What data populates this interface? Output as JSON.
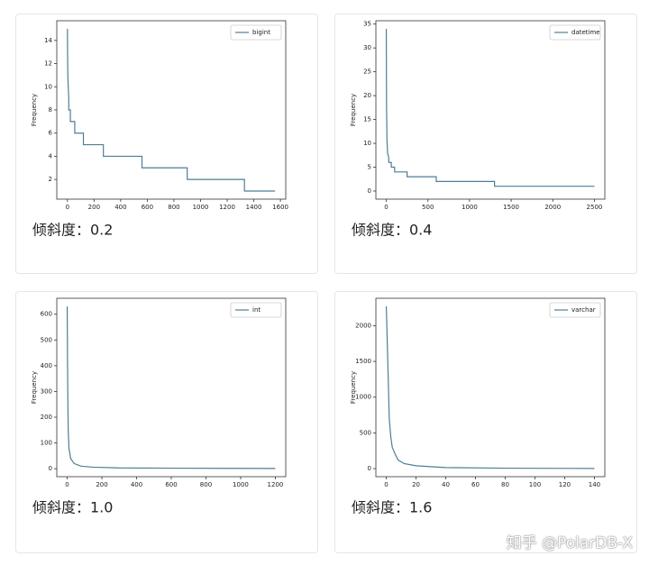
{
  "chart_data": [
    {
      "type": "line",
      "caption": "倾斜度：0.2",
      "ylabel": "Frequency",
      "legend": "upper right",
      "xlim": [
        -80,
        1640
      ],
      "xticks": [
        0,
        200,
        400,
        600,
        800,
        1000,
        1200,
        1400,
        1600
      ],
      "ylim": [
        0.3,
        15.7
      ],
      "yticks": [
        2,
        4,
        6,
        8,
        10,
        12,
        14
      ],
      "series": [
        {
          "name": "bigint",
          "color": "#4f7d95",
          "x": [
            0,
            1,
            3,
            6,
            10,
            10,
            22,
            22,
            55,
            55,
            120,
            120,
            270,
            270,
            560,
            560,
            900,
            900,
            1330,
            1330,
            1560
          ],
          "values": [
            15,
            13,
            11,
            10,
            9,
            8,
            8,
            7,
            7,
            6,
            6,
            5,
            5,
            4,
            4,
            3,
            3,
            2,
            2,
            1,
            1
          ]
        }
      ]
    },
    {
      "type": "line",
      "caption": "倾斜度：0.4",
      "ylabel": "Frequency",
      "legend": "upper right",
      "xlim": [
        -125,
        2625
      ],
      "xticks": [
        0,
        500,
        1000,
        1500,
        2000,
        2500
      ],
      "ylim": [
        -1.7,
        35.7
      ],
      "yticks": [
        0,
        5,
        10,
        15,
        20,
        25,
        30,
        35
      ],
      "series": [
        {
          "name": "datetime",
          "color": "#4f7d95",
          "x": [
            0,
            3,
            8,
            15,
            30,
            30,
            60,
            60,
            100,
            100,
            250,
            250,
            600,
            600,
            1300,
            1300,
            2500
          ],
          "values": [
            34,
            18,
            11,
            8,
            7,
            6,
            6,
            5,
            5,
            4,
            4,
            3,
            3,
            2,
            2,
            1,
            1
          ]
        }
      ]
    },
    {
      "type": "line",
      "caption": "倾斜度：1.0",
      "ylabel": "Frequency",
      "legend": "upper right",
      "xlim": [
        -60,
        1260
      ],
      "xticks": [
        0,
        200,
        400,
        600,
        800,
        1000,
        1200
      ],
      "ylim": [
        -31,
        662
      ],
      "yticks": [
        0,
        100,
        200,
        300,
        400,
        500,
        600
      ],
      "series": [
        {
          "name": "int",
          "color": "#4f7d95",
          "x": [
            0,
            2,
            4,
            6,
            10,
            20,
            40,
            80,
            150,
            300,
            600,
            1200
          ],
          "values": [
            630,
            400,
            250,
            150,
            80,
            40,
            20,
            10,
            6,
            3,
            2,
            1
          ]
        }
      ]
    },
    {
      "type": "line",
      "caption": "倾斜度：1.6",
      "ylabel": "Frequency",
      "legend": "upper right",
      "xlim": [
        -7,
        147
      ],
      "xticks": [
        0,
        20,
        40,
        60,
        80,
        100,
        120,
        140
      ],
      "ylim": [
        -113,
        2384
      ],
      "yticks": [
        0,
        500,
        1000,
        1500,
        2000
      ],
      "series": [
        {
          "name": "varchar",
          "color": "#4f7d95",
          "x": [
            0,
            1,
            2,
            3,
            4,
            6,
            8,
            12,
            20,
            40,
            80,
            140
          ],
          "values": [
            2270,
            1500,
            700,
            450,
            300,
            200,
            120,
            70,
            40,
            15,
            6,
            2
          ]
        }
      ]
    }
  ],
  "watermark": "知乎 @PolarDB-X"
}
